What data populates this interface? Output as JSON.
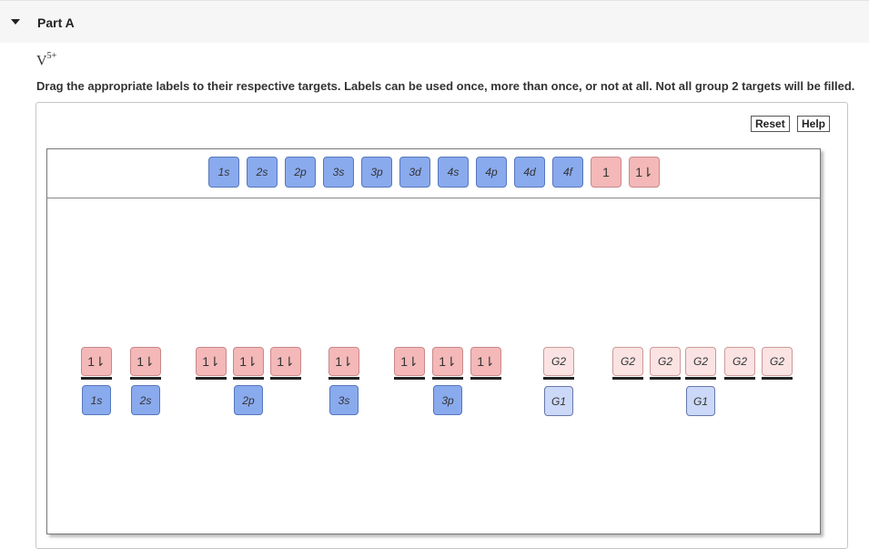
{
  "part": {
    "title": "Part A"
  },
  "ion": {
    "symbol": "V",
    "charge": "5+"
  },
  "instructions": "Drag the appropriate labels to their respective targets. Labels can be used once, more than once, or not at all. Not all group 2 targets will be filled.",
  "controls": {
    "reset": "Reset",
    "help": "Help"
  },
  "palette": [
    {
      "text": "1s"
    },
    {
      "text": "2s"
    },
    {
      "text": "2p"
    },
    {
      "text": "3s"
    },
    {
      "text": "3p"
    },
    {
      "text": "3d"
    },
    {
      "text": "4s"
    },
    {
      "text": "4p"
    },
    {
      "text": "4d"
    },
    {
      "text": "4f"
    },
    {
      "text": "1"
    },
    {
      "text": "1⇂"
    }
  ],
  "diagram": {
    "slots": [
      "1⇂",
      "1⇂",
      "1⇂",
      "1⇂",
      "1⇂",
      "1⇂",
      "1⇂",
      "1⇂",
      "1⇂",
      "G2",
      "G2",
      "G2",
      "G2",
      "G2",
      "G2"
    ],
    "names": [
      "1s",
      "2s",
      "2p",
      "3s",
      "3p",
      "G1",
      "G1"
    ]
  },
  "colors": {
    "orbital_label": "#8aaaee",
    "electron_label": "#f4b8b8",
    "group2": "#fbe3e3",
    "group1": "#ccd8f7"
  }
}
